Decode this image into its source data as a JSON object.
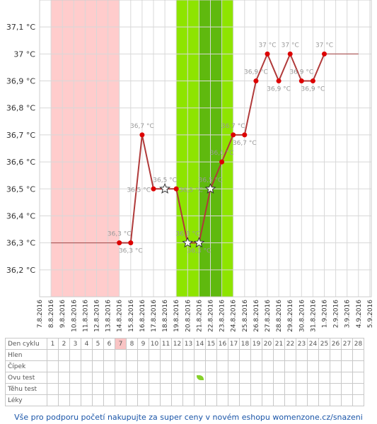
{
  "chart_data": {
    "type": "line",
    "x_dates": [
      "7.8.2016",
      "8.8.2016",
      "9.8.2016",
      "10.8.2016",
      "11.8.2016",
      "12.8.2016",
      "13.8.2016",
      "14.8.2016",
      "15.8.2016",
      "16.8.2016",
      "17.8.2016",
      "18.8.2016",
      "19.8.2016",
      "20.8.2016",
      "21.8.2016",
      "22.8.2016",
      "23.8.2016",
      "24.8.2016",
      "25.8.2016",
      "26.8.2016",
      "27.8.2016",
      "28.8.2016",
      "29.8.2016",
      "30.8.2016",
      "31.8.2016",
      "1.9.2016",
      "2.9.2016",
      "3.9.2016",
      "4.9.2016",
      "5.9.2016"
    ],
    "y_ticks": [
      "36,2 °C",
      "36,3 °C",
      "36,4 °C",
      "36,5 °C",
      "36,6 °C",
      "36,7 °C",
      "36,8 °C",
      "36,9 °C",
      "37 °C",
      "37,1 °C"
    ],
    "ylim": [
      36.1,
      37.2
    ],
    "series": [
      {
        "values": [
          {
            "x": "14.8.2016",
            "y": 36.3,
            "label": "36,3 °C",
            "mark": "dot",
            "label_pos": "above"
          },
          {
            "x": "15.8.2016",
            "y": 36.3,
            "label": "36,3 °C",
            "mark": "dot",
            "label_pos": "below"
          },
          {
            "x": "16.8.2016",
            "y": 36.7,
            "label": "36,7 °C",
            "mark": "dot",
            "label_pos": "above"
          },
          {
            "x": "17.8.2016",
            "y": 36.5,
            "label": "36,5 °C",
            "mark": "dot",
            "label_pos": "left"
          },
          {
            "x": "18.8.2016",
            "y": 36.5,
            "label": "36,5 °C",
            "mark": "star",
            "label_pos": "above"
          },
          {
            "x": "19.8.2016",
            "y": 36.5,
            "label": "36,5 °C",
            "mark": "dot",
            "label_pos": "right"
          },
          {
            "x": "20.8.2016",
            "y": 36.3,
            "label": "36,3 °C",
            "mark": "star",
            "label_pos": "above"
          },
          {
            "x": "21.8.2016",
            "y": 36.3,
            "label": "36,3 °C",
            "mark": "star",
            "label_pos": "below"
          },
          {
            "x": "22.8.2016",
            "y": 36.5,
            "label": "36,5 °C",
            "mark": "star",
            "label_pos": "above"
          },
          {
            "x": "23.8.2016",
            "y": 36.6,
            "label": "36,6 °C",
            "mark": "dot",
            "label_pos": "above"
          },
          {
            "x": "24.8.2016",
            "y": 36.7,
            "label": "36,7 °C",
            "mark": "dot",
            "label_pos": "above"
          },
          {
            "x": "25.8.2016",
            "y": 36.7,
            "label": "36,7 °C",
            "mark": "dot",
            "label_pos": "below"
          },
          {
            "x": "26.8.2016",
            "y": 36.9,
            "label": "36,9 °C",
            "mark": "dot",
            "label_pos": "above"
          },
          {
            "x": "27.8.2016",
            "y": 37.0,
            "label": "37 °C",
            "mark": "dot",
            "label_pos": "above"
          },
          {
            "x": "28.8.2016",
            "y": 36.9,
            "label": "36,9 °C",
            "mark": "dot",
            "label_pos": "below"
          },
          {
            "x": "29.8.2016",
            "y": 37.0,
            "label": "37 °C",
            "mark": "dot",
            "label_pos": "above"
          },
          {
            "x": "30.8.2016",
            "y": 36.9,
            "label": "36,9 °C",
            "mark": "dot",
            "label_pos": "above"
          },
          {
            "x": "31.8.2016",
            "y": 36.9,
            "label": "36,9 °C",
            "mark": "dot",
            "label_pos": "below"
          },
          {
            "x": "1.9.2016",
            "y": 37.0,
            "label": "37 °C",
            "mark": "dot",
            "label_pos": "above"
          }
        ]
      }
    ],
    "coverline_flat": [
      {
        "from": "8.8.2016",
        "to": "14.8.2016",
        "y": 36.3
      },
      {
        "from": "1.9.2016",
        "to": "4.9.2016",
        "y": 37.0
      }
    ],
    "bands": [
      {
        "from": "8.8.2016",
        "to": "14.8.2016",
        "kind": "menstruation",
        "color": "#ffcccc"
      },
      {
        "from": "19.8.2016",
        "to": "21.8.2016",
        "kind": "fertile",
        "color": "#8ee400"
      },
      {
        "from": "21.8.2016",
        "to": "23.8.2016",
        "kind": "fertile-peak",
        "color": "#5fb90e"
      },
      {
        "from": "23.8.2016",
        "to": "24.8.2016",
        "kind": "fertile",
        "color": "#8ee400"
      }
    ],
    "line_color": "#b03a3a",
    "dot_color": "#dd0000",
    "grid": true
  },
  "table": {
    "row_labels": [
      "Den cyklu",
      "Hlen",
      "Čípek",
      "Ovu test",
      "Těhu test",
      "Léky"
    ],
    "days": [
      "1",
      "2",
      "3",
      "4",
      "5",
      "6",
      "7",
      "8",
      "9",
      "10",
      "11",
      "12",
      "13",
      "14",
      "15",
      "16",
      "17",
      "18",
      "19",
      "20",
      "21",
      "22",
      "23",
      "24",
      "25",
      "26",
      "27",
      "28"
    ],
    "highlight_day": "7",
    "ovu_test_day": "14",
    "ovu_icon": "leaf-icon"
  },
  "footer": {
    "text": "Vše pro podporu početí nakupujte za super ceny v novém eshopu womenzone.cz/snazeni"
  }
}
